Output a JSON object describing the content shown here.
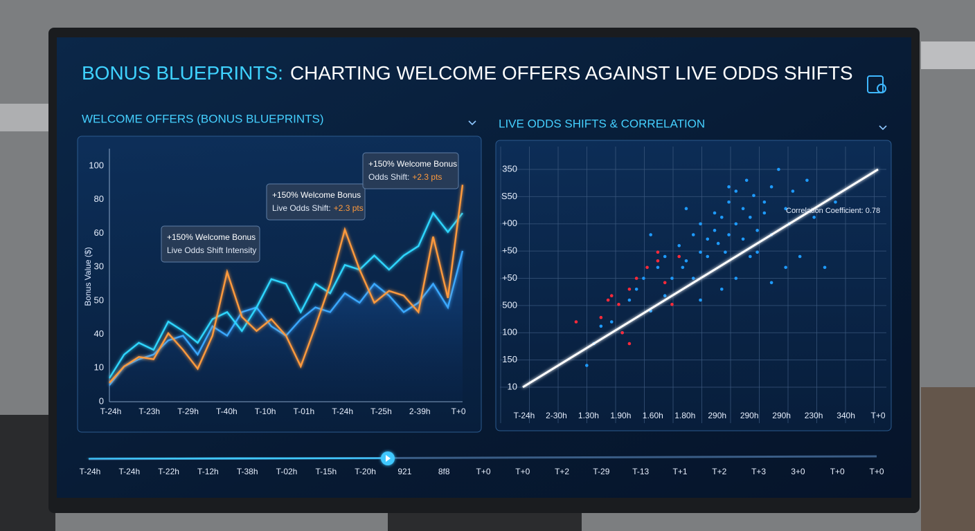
{
  "header": {
    "title_accent": "BONUS BLUEPRINTS:",
    "title_rest": "CHARTING WELCOME OFFERS AGAINST LIVE ODDS SHIFTS"
  },
  "chart_data": [
    {
      "type": "line",
      "title": "WELCOME OFFERS (BONUS BLUEPRINTS)",
      "y_label": "Bonus Value ($)",
      "y_labels": [
        "100",
        "80",
        "60",
        "30",
        "50",
        "40",
        "10",
        "0"
      ],
      "x_labels": [
        "T-24h",
        "T-23h",
        "T-29h",
        "T-40h",
        "T-10h",
        "T-01h",
        "T-24h",
        "T-25h",
        "2-39h",
        "T+0"
      ],
      "ylim": [
        0,
        100
      ],
      "series": [
        {
          "color": "#ff9a3c",
          "values": [
            8,
            15,
            19,
            18,
            29,
            22,
            14,
            28,
            55,
            36,
            30,
            35,
            28,
            15,
            32,
            50,
            73,
            56,
            42,
            47,
            45,
            38,
            70,
            44,
            92
          ]
        },
        {
          "color": "#2fd6ff",
          "values": [
            10,
            20,
            25,
            22,
            34,
            30,
            25,
            35,
            38,
            30,
            40,
            52,
            50,
            38,
            50,
            46,
            58,
            56,
            62,
            56,
            62,
            66,
            80,
            72,
            80
          ]
        },
        {
          "color": "#3aa8ff",
          "values": [
            7,
            15,
            18,
            20,
            26,
            28,
            20,
            32,
            28,
            38,
            40,
            32,
            28,
            35,
            40,
            38,
            46,
            42,
            50,
            45,
            38,
            42,
            50,
            40,
            64
          ]
        }
      ],
      "annotations": [
        {
          "line1": "+150% Welcome Bonus",
          "line2": "Live Odds Shift Intensity"
        },
        {
          "line1": "+150% Welcome Bonus",
          "line2": "Live Odds Shift:",
          "highlight": "+2.3 pts"
        },
        {
          "line1": "+150% Welcome Bonus",
          "line2": "Odds Shift:",
          "highlight": "+2.3 pts"
        }
      ]
    },
    {
      "type": "scatter",
      "title": "LIVE ODDS SHIFTS & CORRELATION",
      "y_labels": [
        "350",
        "S50",
        "+00",
        "+50",
        "+50",
        "500",
        "100",
        "150",
        "10"
      ],
      "x_labels": [
        "T-24h",
        "2-30h",
        "1.30h",
        "1.90h",
        "1.60h",
        "1.80h",
        "290h",
        "290h",
        "290h",
        "230h",
        "340h",
        "T+0"
      ],
      "xlim": [
        0,
        100
      ],
      "ylim": [
        0,
        100
      ],
      "series": [
        {
          "color": "#1e9bff",
          "x": [
            18,
            20,
            22,
            25,
            28,
            30,
            32,
            34,
            36,
            38,
            40,
            40,
            42,
            44,
            45,
            46,
            48,
            48,
            50,
            50,
            52,
            52,
            54,
            54,
            55,
            56,
            57,
            58,
            58,
            60,
            60,
            62,
            62,
            63,
            64,
            65,
            66,
            66,
            68,
            68,
            70,
            70,
            72,
            74,
            75,
            76,
            78,
            80,
            82,
            85,
            88,
            74,
            60,
            46,
            36,
            58,
            64,
            56,
            50,
            70
          ],
          "y": [
            10,
            20,
            28,
            30,
            25,
            40,
            45,
            50,
            35,
            55,
            60,
            42,
            50,
            65,
            55,
            58,
            70,
            50,
            62,
            75,
            60,
            68,
            72,
            80,
            66,
            78,
            62,
            85,
            70,
            75,
            90,
            82,
            68,
            95,
            78,
            88,
            72,
            62,
            85,
            80,
            92,
            70,
            100,
            82,
            75,
            90,
            60,
            95,
            78,
            55,
            85,
            55,
            50,
            82,
            70,
            92,
            60,
            45,
            40,
            48
          ]
        },
        {
          "color": "#ff2a3a",
          "x": [
            15,
            22,
            24,
            27,
            28,
            30,
            32,
            35,
            38,
            40,
            42,
            44,
            38,
            30,
            25
          ],
          "y": [
            30,
            32,
            40,
            38,
            25,
            45,
            50,
            55,
            58,
            48,
            38,
            60,
            62,
            20,
            42
          ]
        }
      ],
      "trend_line": {
        "color": "#ffffff",
        "x": [
          0,
          100
        ],
        "y": [
          0,
          100
        ]
      },
      "annotation": "Correlation Coefficient: 0.78"
    }
  ],
  "timeline": {
    "labels": [
      "T-24h",
      "T-24h",
      "T-22h",
      "T-12h",
      "T-38h",
      "T-02h",
      "T-15h",
      "T-20h",
      "921",
      "8f8",
      "T+0",
      "T+0",
      "T+2",
      "T-29",
      "T-13",
      "T+1",
      "T+2",
      "T+3",
      "3+0",
      "T+0",
      "T+0"
    ]
  }
}
